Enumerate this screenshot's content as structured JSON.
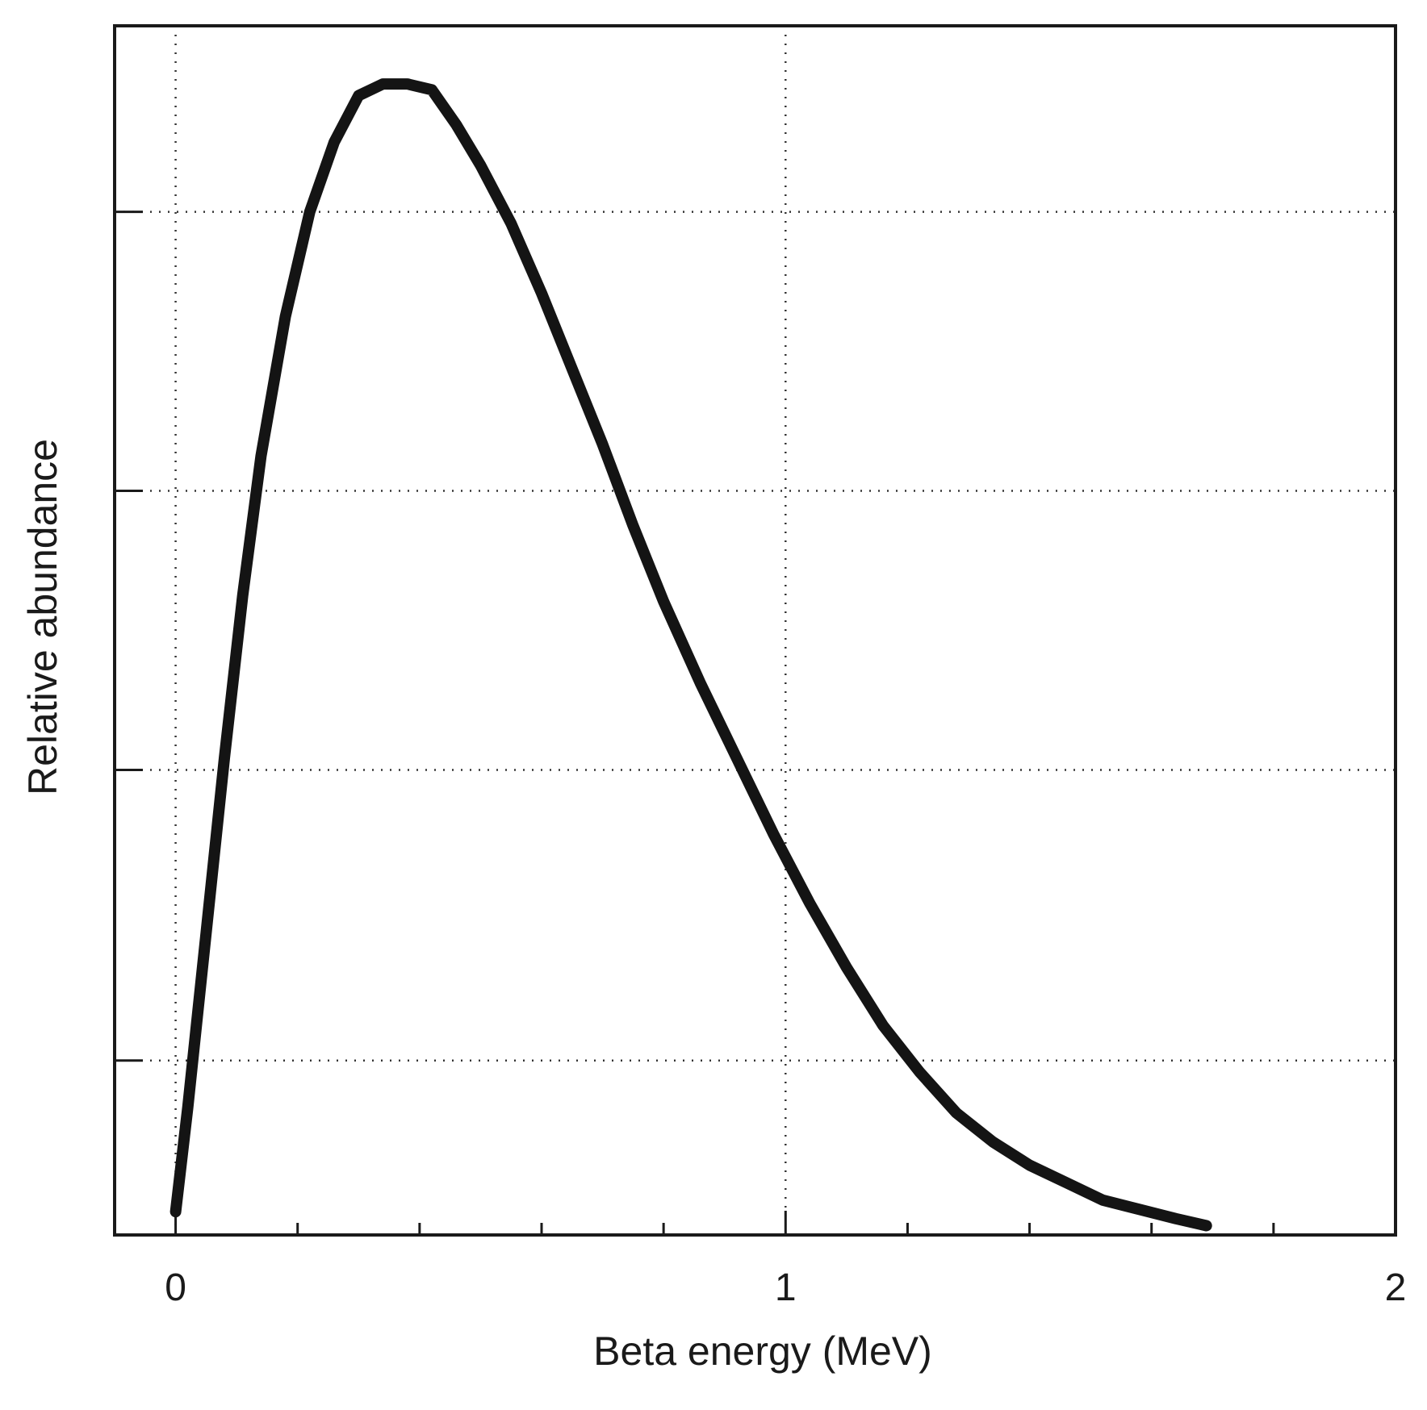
{
  "chart_data": {
    "type": "line",
    "title": "",
    "xlabel": "Beta energy (MeV)",
    "ylabel": "Relative abundance",
    "xlim": [
      -0.1,
      2.0
    ],
    "ylim": [
      0,
      1.04
    ],
    "x_ticks": [
      0,
      1,
      2
    ],
    "x_tick_labels": [
      "0",
      "1",
      "2"
    ],
    "x_minor_ticks": [
      0.2,
      0.4,
      0.6,
      0.8,
      1.2,
      1.4,
      1.6,
      1.8
    ],
    "y_ticks": [
      0.15,
      0.4,
      0.64,
      0.88
    ],
    "y_tick_labels": [],
    "grid": true,
    "legend": "none",
    "series": [
      {
        "color": "#141414",
        "x": [
          0.0,
          0.02,
          0.05,
          0.08,
          0.11,
          0.14,
          0.18,
          0.22,
          0.26,
          0.3,
          0.34,
          0.38,
          0.42,
          0.46,
          0.5,
          0.55,
          0.6,
          0.65,
          0.7,
          0.75,
          0.8,
          0.86,
          0.92,
          0.98,
          1.04,
          1.1,
          1.16,
          1.22,
          1.28,
          1.34,
          1.4,
          1.46,
          1.52,
          1.58,
          1.64,
          1.69
        ],
        "y": [
          0.02,
          0.11,
          0.26,
          0.41,
          0.55,
          0.67,
          0.79,
          0.88,
          0.94,
          0.98,
          0.99,
          0.99,
          0.985,
          0.955,
          0.92,
          0.87,
          0.81,
          0.745,
          0.68,
          0.61,
          0.545,
          0.475,
          0.41,
          0.345,
          0.285,
          0.23,
          0.18,
          0.14,
          0.105,
          0.08,
          0.06,
          0.045,
          0.03,
          0.022,
          0.014,
          0.008
        ]
      }
    ]
  }
}
